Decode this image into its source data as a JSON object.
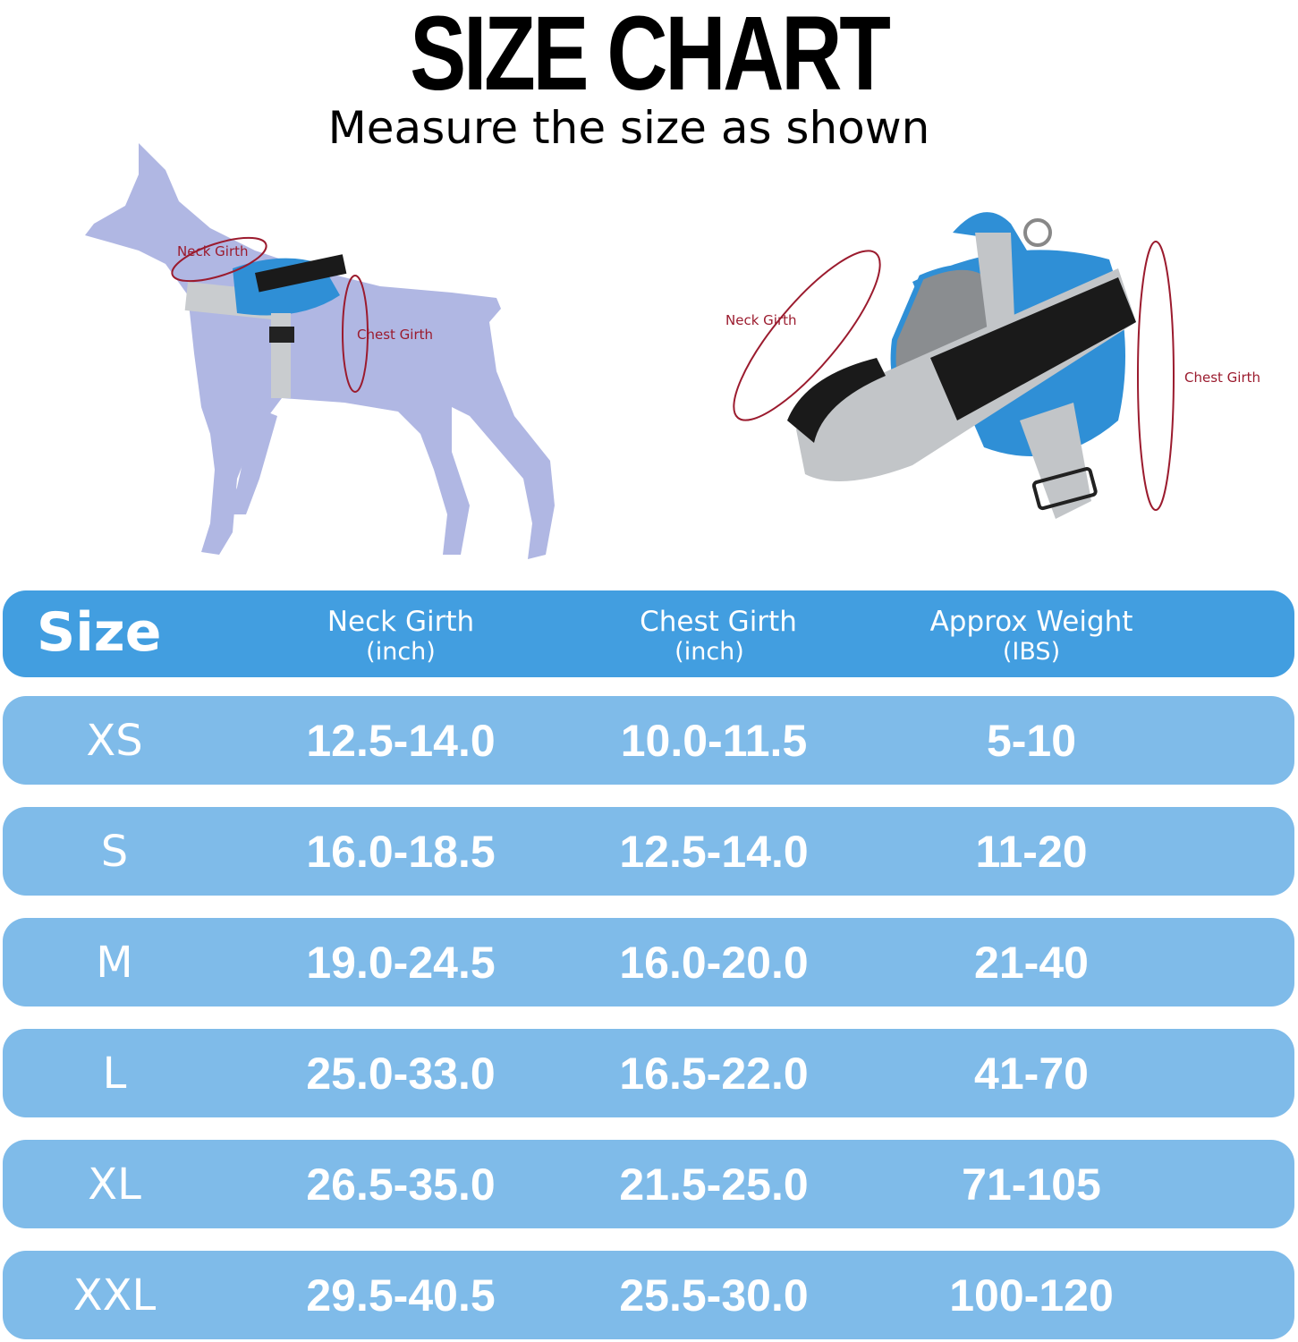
{
  "title": "SIZE CHART",
  "subtitle": "Measure the size as shown",
  "illustrations": {
    "dog_labels": {
      "neck": "Neck Girth",
      "chest": "Chest Girth"
    },
    "harness_labels": {
      "neck": "Neck Girth",
      "chest": "Chest Girth"
    }
  },
  "colors": {
    "header": "#429ee0",
    "row": "#7fbbe9",
    "measure_line": "#9b1b2e",
    "dog": "#b0b7e3"
  },
  "table": {
    "headers": [
      {
        "main": "Size",
        "unit": ""
      },
      {
        "main": "Neck Girth",
        "unit": "(inch)"
      },
      {
        "main": "Chest Girth",
        "unit": "(inch)"
      },
      {
        "main": "Approx Weight",
        "unit": "(IBS)"
      }
    ],
    "rows": [
      {
        "size": "XS",
        "neck": "12.5-14.0",
        "chest": "10.0-11.5",
        "weight": "5-10"
      },
      {
        "size": "S",
        "neck": "16.0-18.5",
        "chest": "12.5-14.0",
        "weight": "11-20"
      },
      {
        "size": "M",
        "neck": "19.0-24.5",
        "chest": "16.0-20.0",
        "weight": "21-40"
      },
      {
        "size": "L",
        "neck": "25.0-33.0",
        "chest": "16.5-22.0",
        "weight": "41-70"
      },
      {
        "size": "XL",
        "neck": "26.5-35.0",
        "chest": "21.5-25.0",
        "weight": "71-105"
      },
      {
        "size": "XXL",
        "neck": "29.5-40.5",
        "chest": "25.5-30.0",
        "weight": "100-120"
      }
    ]
  }
}
